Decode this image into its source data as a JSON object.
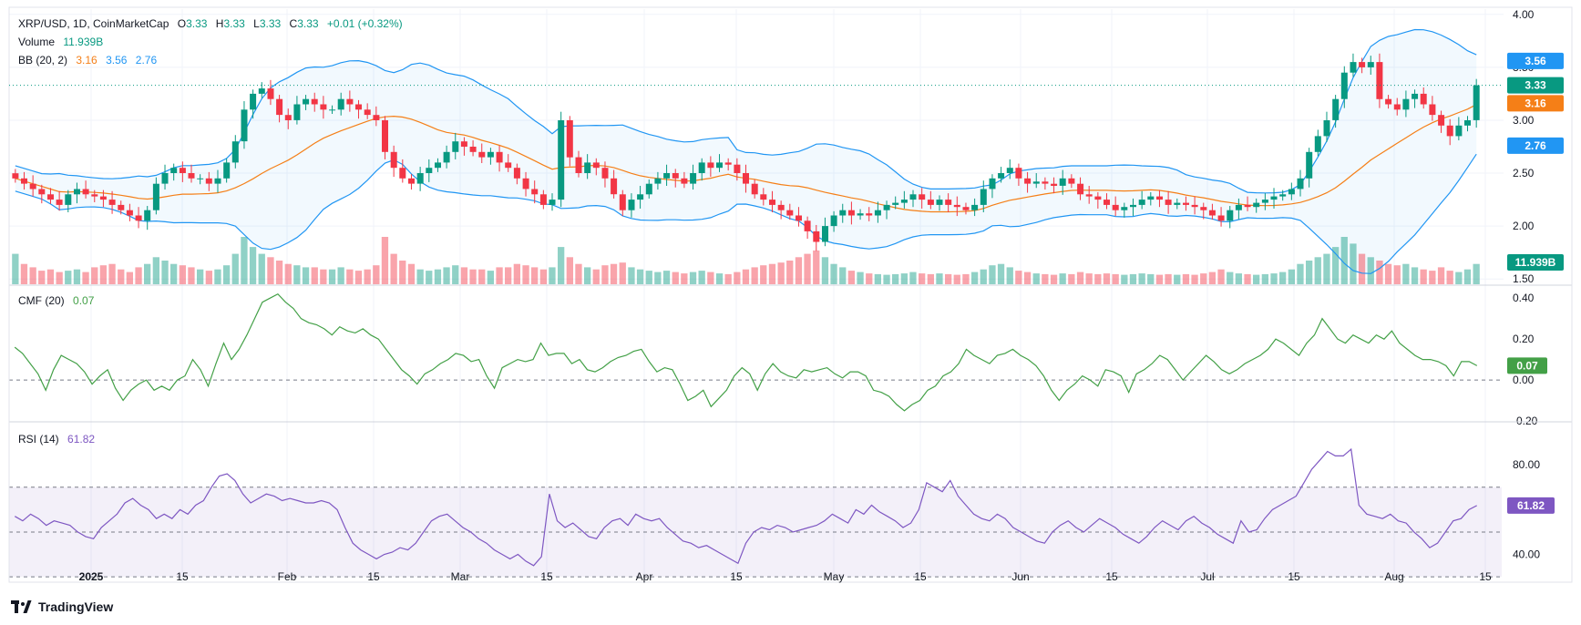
{
  "header": {
    "symbol": "XRP/USD, 1D, CoinMarketCap",
    "open_label": "O",
    "open": "3.33",
    "high_label": "H",
    "high": "3.33",
    "low_label": "L",
    "low": "3.33",
    "close_label": "C",
    "close": "3.33",
    "change": "+0.01 (+0.32%)",
    "volume_label": "Volume",
    "volume": "11.939B",
    "bb_label": "BB (20, 2)",
    "bb_basis": "3.16",
    "bb_upper": "3.56",
    "bb_lower": "2.76",
    "cmf_label": "CMF (20)",
    "cmf": "0.07",
    "rsi_label": "RSI (14)",
    "rsi": "61.82"
  },
  "branding": {
    "text": "TradingView"
  },
  "colors": {
    "up": "#089981",
    "down": "#f23645",
    "basis": "#f57f17",
    "bands": "#2196f3",
    "cmf": "#43a047",
    "rsi": "#7e57c2"
  },
  "chart_data": [
    {
      "type": "candlestick",
      "name": "XRP/USD price with Bollinger Bands (20, 2) and volume",
      "x_axis": {
        "ticks": [
          "2025",
          "15",
          "Feb",
          "15",
          "Mar",
          "15",
          "Apr",
          "15",
          "May",
          "15",
          "Jun",
          "15",
          "Jul",
          "15",
          "Aug",
          "15"
        ]
      },
      "y_axis": {
        "ticks": [
          "1.50",
          "2.00",
          "2.50",
          "3.00",
          "3.50",
          "4.00"
        ],
        "range": [
          1.45,
          4.05
        ]
      },
      "last_price": 3.33,
      "bb_last": {
        "upper": 3.56,
        "basis": 3.16,
        "lower": 2.76
      },
      "volume_last": "11.939B",
      "close_series_approx": [
        2.45,
        2.4,
        2.35,
        2.3,
        2.25,
        2.2,
        2.3,
        2.35,
        2.3,
        2.28,
        2.25,
        2.2,
        2.15,
        2.1,
        2.05,
        2.15,
        2.4,
        2.5,
        2.55,
        2.5,
        2.45,
        2.45,
        2.4,
        2.45,
        2.6,
        2.8,
        3.1,
        3.25,
        3.3,
        3.2,
        3.05,
        3.0,
        3.15,
        3.2,
        3.15,
        3.1,
        3.1,
        3.2,
        3.15,
        3.1,
        3.05,
        3.0,
        2.7,
        2.55,
        2.45,
        2.4,
        2.5,
        2.55,
        2.6,
        2.7,
        2.8,
        2.75,
        2.7,
        2.65,
        2.7,
        2.6,
        2.55,
        2.45,
        2.35,
        2.3,
        2.2,
        2.25,
        3.0,
        2.65,
        2.5,
        2.6,
        2.55,
        2.45,
        2.3,
        2.15,
        2.25,
        2.3,
        2.4,
        2.45,
        2.5,
        2.45,
        2.4,
        2.5,
        2.6,
        2.55,
        2.6,
        2.58,
        2.5,
        2.4,
        2.3,
        2.25,
        2.2,
        2.15,
        2.1,
        2.05,
        1.95,
        1.85,
        2.0,
        2.1,
        2.15,
        2.1,
        2.12,
        2.1,
        2.15,
        2.2,
        2.22,
        2.25,
        2.3,
        2.25,
        2.2,
        2.25,
        2.2,
        2.18,
        2.15,
        2.2,
        2.35,
        2.45,
        2.5,
        2.55,
        2.45,
        2.4,
        2.42,
        2.4,
        2.38,
        2.45,
        2.4,
        2.3,
        2.28,
        2.25,
        2.2,
        2.15,
        2.18,
        2.2,
        2.25,
        2.28,
        2.25,
        2.2,
        2.22,
        2.2,
        2.18,
        2.15,
        2.1,
        2.05,
        2.15,
        2.2,
        2.18,
        2.22,
        2.25,
        2.28,
        2.3,
        2.35,
        2.45,
        2.7,
        2.85,
        3.0,
        3.2,
        3.45,
        3.55,
        3.5,
        3.55,
        3.2,
        3.15,
        3.1,
        3.2,
        3.25,
        3.15,
        3.05,
        2.95,
        2.85,
        2.95,
        3.0,
        3.33
      ],
      "volume_series_approx": [
        0.45,
        0.3,
        0.25,
        0.2,
        0.22,
        0.18,
        0.2,
        0.22,
        0.18,
        0.25,
        0.28,
        0.3,
        0.22,
        0.18,
        0.25,
        0.3,
        0.4,
        0.35,
        0.3,
        0.28,
        0.25,
        0.22,
        0.2,
        0.22,
        0.28,
        0.45,
        0.7,
        0.55,
        0.45,
        0.4,
        0.35,
        0.3,
        0.28,
        0.25,
        0.25,
        0.22,
        0.22,
        0.25,
        0.22,
        0.2,
        0.22,
        0.28,
        0.7,
        0.45,
        0.35,
        0.3,
        0.22,
        0.2,
        0.22,
        0.25,
        0.28,
        0.25,
        0.22,
        0.22,
        0.2,
        0.25,
        0.25,
        0.3,
        0.28,
        0.25,
        0.22,
        0.25,
        0.55,
        0.4,
        0.3,
        0.25,
        0.22,
        0.28,
        0.3,
        0.32,
        0.25,
        0.22,
        0.2,
        0.18,
        0.2,
        0.18,
        0.16,
        0.18,
        0.2,
        0.18,
        0.16,
        0.15,
        0.18,
        0.22,
        0.25,
        0.28,
        0.3,
        0.32,
        0.35,
        0.4,
        0.45,
        0.5,
        0.4,
        0.3,
        0.25,
        0.2,
        0.18,
        0.16,
        0.15,
        0.14,
        0.15,
        0.16,
        0.18,
        0.16,
        0.15,
        0.16,
        0.15,
        0.14,
        0.15,
        0.18,
        0.22,
        0.28,
        0.3,
        0.25,
        0.2,
        0.18,
        0.16,
        0.15,
        0.14,
        0.16,
        0.15,
        0.18,
        0.16,
        0.15,
        0.16,
        0.15,
        0.14,
        0.15,
        0.16,
        0.15,
        0.14,
        0.15,
        0.14,
        0.15,
        0.14,
        0.16,
        0.18,
        0.22,
        0.18,
        0.16,
        0.15,
        0.14,
        0.15,
        0.16,
        0.18,
        0.22,
        0.3,
        0.35,
        0.4,
        0.45,
        0.55,
        0.7,
        0.6,
        0.45,
        0.4,
        0.35,
        0.3,
        0.28,
        0.3,
        0.25,
        0.22,
        0.2,
        0.25,
        0.2,
        0.18,
        0.22,
        0.3
      ]
    },
    {
      "type": "line",
      "name": "CMF (20)",
      "y_axis": {
        "ticks": [
          "-0.20",
          "0.00",
          "0.20",
          "0.40"
        ],
        "range": [
          -0.2,
          0.45
        ]
      },
      "last_value": 0.07,
      "values_approx": [
        0.16,
        0.13,
        0.08,
        0.03,
        -0.05,
        0.05,
        0.12,
        0.1,
        0.08,
        0.04,
        -0.02,
        0.02,
        0.05,
        -0.04,
        -0.1,
        -0.05,
        -0.02,
        0.0,
        -0.05,
        -0.03,
        -0.05,
        0.0,
        0.02,
        0.1,
        0.05,
        -0.03,
        0.08,
        0.18,
        0.1,
        0.15,
        0.22,
        0.3,
        0.38,
        0.4,
        0.42,
        0.38,
        0.35,
        0.3,
        0.28,
        0.27,
        0.25,
        0.22,
        0.26,
        0.24,
        0.23,
        0.25,
        0.22,
        0.2,
        0.15,
        0.1,
        0.05,
        0.02,
        -0.02,
        0.03,
        0.05,
        0.08,
        0.1,
        0.13,
        0.12,
        0.09,
        0.1,
        0.02,
        -0.04,
        0.06,
        0.08,
        0.1,
        0.09,
        0.1,
        0.18,
        0.12,
        0.13,
        0.13,
        0.08,
        0.1,
        0.05,
        0.04,
        0.06,
        0.09,
        0.11,
        0.12,
        0.14,
        0.15,
        0.09,
        0.04,
        0.06,
        0.05,
        -0.02,
        -0.1,
        -0.08,
        -0.05,
        -0.13,
        -0.09,
        -0.05,
        0.02,
        0.06,
        0.03,
        -0.05,
        0.03,
        0.08,
        0.04,
        0.02,
        0.01,
        0.05,
        0.04,
        0.05,
        0.06,
        0.03,
        0.01,
        0.04,
        0.04,
        0.02,
        -0.05,
        -0.06,
        -0.08,
        -0.12,
        -0.15,
        -0.12,
        -0.1,
        -0.05,
        -0.03,
        0.02,
        0.04,
        0.08,
        0.15,
        0.12,
        0.1,
        0.08,
        0.12,
        0.13,
        0.15,
        0.12,
        0.1,
        0.07,
        0.02,
        -0.05,
        -0.1,
        -0.05,
        -0.02,
        0.02,
        0.0,
        -0.03,
        0.05,
        0.04,
        0.02,
        -0.06,
        0.03,
        0.05,
        0.08,
        0.12,
        0.1,
        0.05,
        0.0,
        0.04,
        0.08,
        0.12,
        0.09,
        0.05,
        0.03,
        0.05,
        0.08,
        0.1,
        0.12,
        0.15,
        0.2,
        0.18,
        0.15,
        0.12,
        0.18,
        0.22,
        0.3,
        0.25,
        0.2,
        0.18,
        0.22,
        0.2,
        0.18,
        0.22,
        0.2,
        0.24,
        0.18,
        0.15,
        0.12,
        0.1,
        0.1,
        0.09,
        0.07,
        0.02,
        0.09,
        0.09,
        0.07
      ]
    },
    {
      "type": "line",
      "name": "RSI (14)",
      "y_axis": {
        "ticks": [
          "40.00",
          "60.00",
          "80.00"
        ],
        "range": [
          28,
          98
        ]
      },
      "bands": {
        "upper": 70,
        "middle": 50,
        "lower": 30
      },
      "last_value": 61.82,
      "values_approx": [
        57,
        55,
        58,
        56,
        53,
        55,
        54,
        53,
        50,
        48,
        47,
        52,
        55,
        58,
        63,
        65,
        62,
        60,
        56,
        58,
        56,
        60,
        58,
        62,
        64,
        70,
        75,
        76,
        73,
        67,
        63,
        65,
        67,
        66,
        64,
        65,
        64,
        63,
        63,
        64,
        63,
        60,
        52,
        45,
        42,
        40,
        38,
        40,
        41,
        43,
        42,
        45,
        50,
        55,
        57,
        58,
        55,
        52,
        50,
        47,
        45,
        42,
        40,
        38,
        40,
        37,
        35,
        39,
        67,
        55,
        52,
        54,
        51,
        48,
        47,
        52,
        55,
        56,
        53,
        58,
        56,
        55,
        56,
        52,
        49,
        46,
        45,
        43,
        44,
        42,
        40,
        38,
        36,
        45,
        50,
        52,
        51,
        53,
        52,
        50,
        51,
        52,
        53,
        55,
        58,
        56,
        54,
        60,
        58,
        62,
        59,
        57,
        55,
        52,
        54,
        60,
        72,
        70,
        68,
        73,
        66,
        62,
        58,
        56,
        55,
        58,
        56,
        52,
        50,
        48,
        46,
        45,
        50,
        53,
        55,
        52,
        50,
        53,
        56,
        54,
        52,
        49,
        47,
        45,
        48,
        52,
        55,
        53,
        51,
        55,
        57,
        54,
        52,
        49,
        47,
        45,
        55,
        50,
        51,
        56,
        60,
        62,
        64,
        66,
        72,
        78,
        82,
        86,
        84,
        84,
        87,
        62,
        58,
        57,
        56,
        58,
        55,
        54,
        50,
        47,
        43,
        45,
        50,
        55,
        56,
        60,
        61.82
      ]
    }
  ]
}
